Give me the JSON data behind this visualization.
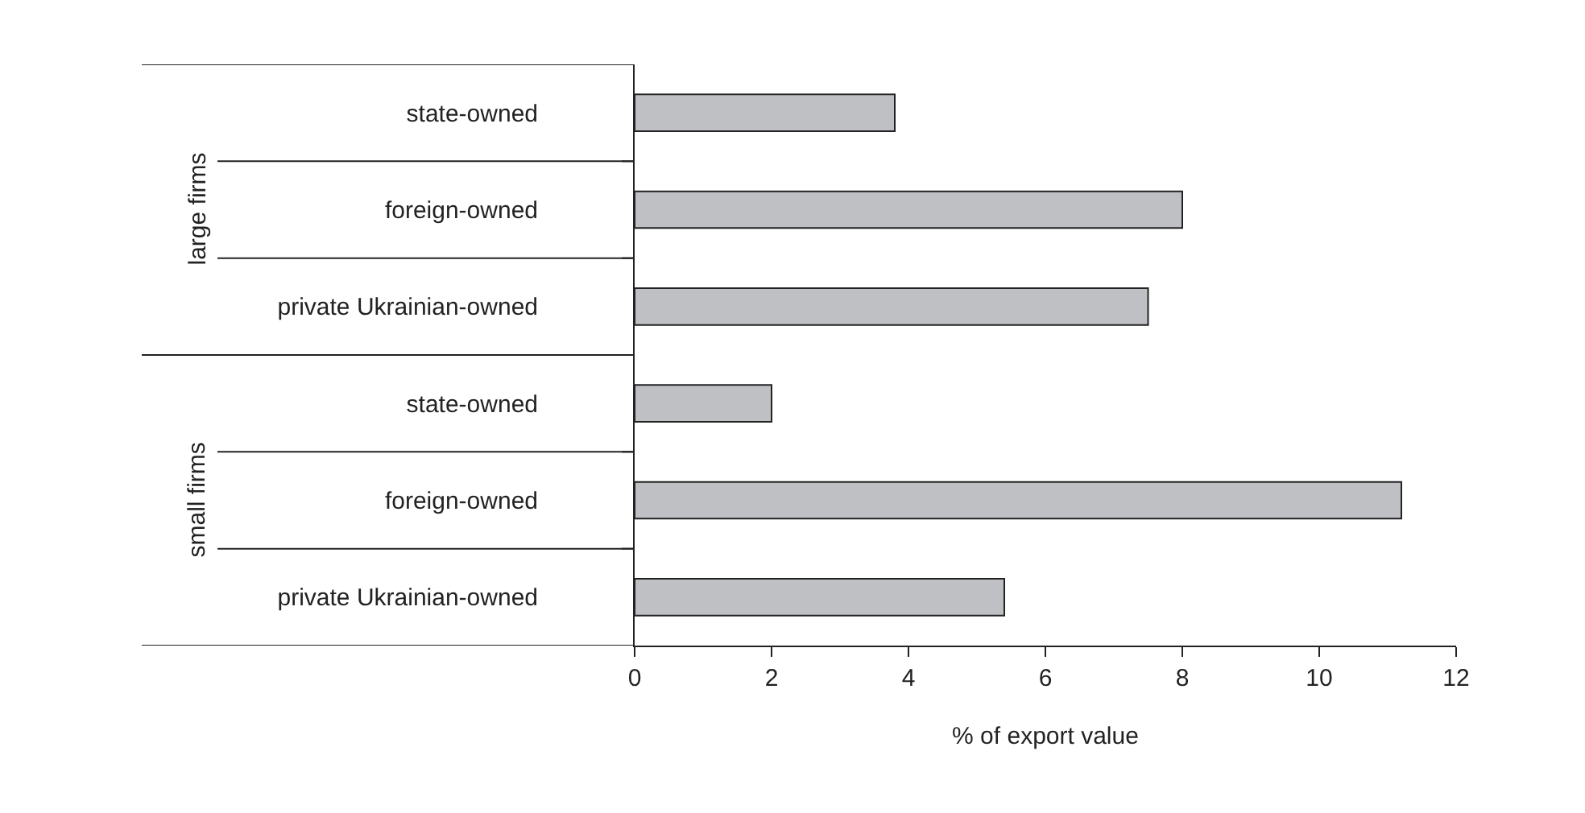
{
  "chart_data": {
    "type": "bar",
    "orientation": "horizontal",
    "categories": [
      "state-owned",
      "foreign-owned",
      "private Ukrainian-owned",
      "state-owned",
      "foreign-owned",
      "private Ukrainian-owned"
    ],
    "values": [
      3.8,
      8.0,
      7.5,
      2.0,
      11.2,
      5.4
    ],
    "color": "#bfc0c4",
    "xlim": [
      0,
      12
    ],
    "xticks": [
      0,
      2,
      4,
      6,
      8,
      10,
      12
    ],
    "xlabel": "% of export value",
    "annotations": [
      "large firms",
      "small firms"
    ]
  }
}
